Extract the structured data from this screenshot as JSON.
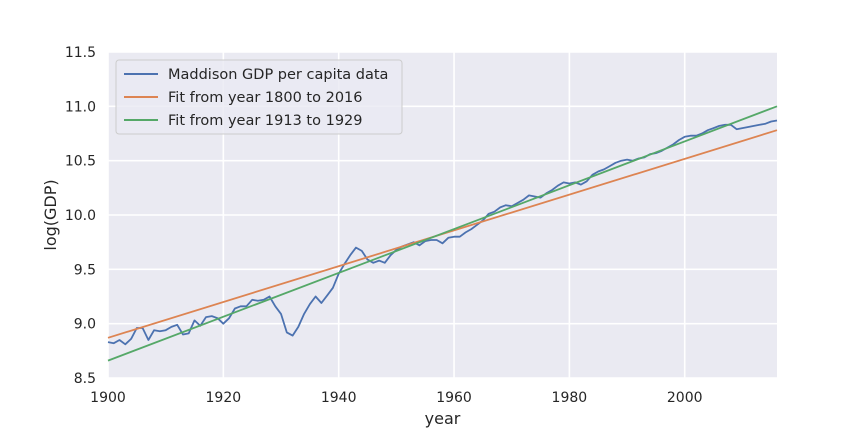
{
  "chart_data": {
    "type": "line",
    "title": "",
    "xlabel": "year",
    "ylabel": "log(GDP)",
    "xlim": [
      1900,
      2016
    ],
    "ylim": [
      8.5,
      11.5
    ],
    "xticks": [
      1900,
      1920,
      1940,
      1960,
      1980,
      2000
    ],
    "yticks": [
      8.5,
      9.0,
      9.5,
      10.0,
      10.5,
      11.0,
      11.5
    ],
    "grid": true,
    "legend_position": "top-left",
    "series": [
      {
        "name": "Maddison GDP per capita data",
        "color": "#4c72b0",
        "x": [
          1900,
          1901,
          1902,
          1903,
          1904,
          1905,
          1906,
          1907,
          1908,
          1909,
          1910,
          1911,
          1912,
          1913,
          1914,
          1915,
          1916,
          1917,
          1918,
          1919,
          1920,
          1921,
          1922,
          1923,
          1924,
          1925,
          1926,
          1927,
          1928,
          1929,
          1930,
          1931,
          1932,
          1933,
          1934,
          1935,
          1936,
          1937,
          1938,
          1939,
          1940,
          1941,
          1942,
          1943,
          1944,
          1945,
          1946,
          1947,
          1948,
          1949,
          1950,
          1951,
          1952,
          1953,
          1954,
          1955,
          1956,
          1957,
          1958,
          1959,
          1960,
          1961,
          1962,
          1963,
          1964,
          1965,
          1966,
          1967,
          1968,
          1969,
          1970,
          1971,
          1972,
          1973,
          1974,
          1975,
          1976,
          1977,
          1978,
          1979,
          1980,
          1981,
          1982,
          1983,
          1984,
          1985,
          1986,
          1987,
          1988,
          1989,
          1990,
          1991,
          1992,
          1993,
          1994,
          1995,
          1996,
          1997,
          1998,
          1999,
          2000,
          2001,
          2002,
          2003,
          2004,
          2005,
          2006,
          2007,
          2008,
          2009,
          2010,
          2011,
          2012,
          2013,
          2014,
          2015,
          2016
        ],
        "y": [
          8.83,
          8.82,
          8.85,
          8.81,
          8.86,
          8.96,
          8.96,
          8.85,
          8.94,
          8.93,
          8.94,
          8.97,
          8.99,
          8.9,
          8.91,
          9.03,
          8.98,
          9.06,
          9.07,
          9.05,
          9.0,
          9.05,
          9.14,
          9.16,
          9.16,
          9.22,
          9.21,
          9.22,
          9.25,
          9.16,
          9.09,
          8.92,
          8.89,
          8.97,
          9.09,
          9.18,
          9.25,
          9.19,
          9.26,
          9.33,
          9.46,
          9.55,
          9.63,
          9.7,
          9.67,
          9.59,
          9.56,
          9.58,
          9.56,
          9.63,
          9.68,
          9.71,
          9.73,
          9.75,
          9.72,
          9.76,
          9.77,
          9.77,
          9.74,
          9.79,
          9.8,
          9.8,
          9.84,
          9.87,
          9.91,
          9.95,
          10.01,
          10.03,
          10.07,
          10.09,
          10.08,
          10.11,
          10.14,
          10.18,
          10.17,
          10.16,
          10.2,
          10.23,
          10.27,
          10.3,
          10.29,
          10.3,
          10.28,
          10.31,
          10.37,
          10.4,
          10.42,
          10.45,
          10.48,
          10.5,
          10.51,
          10.5,
          10.52,
          10.53,
          10.56,
          10.57,
          10.59,
          10.62,
          10.65,
          10.69,
          10.72,
          10.73,
          10.73,
          10.75,
          10.78,
          10.8,
          10.82,
          10.83,
          10.83,
          10.79,
          10.8,
          10.81,
          10.82,
          10.83,
          10.84,
          10.86,
          10.87
        ]
      },
      {
        "name": "Fit from year 1800 to 2016",
        "color": "#dd8452",
        "x": [
          1900,
          2016
        ],
        "y": [
          8.87,
          10.78
        ]
      },
      {
        "name": "Fit from year 1913 to 1929",
        "color": "#55a868",
        "x": [
          1900,
          2016
        ],
        "y": [
          8.66,
          11.0
        ]
      }
    ]
  }
}
